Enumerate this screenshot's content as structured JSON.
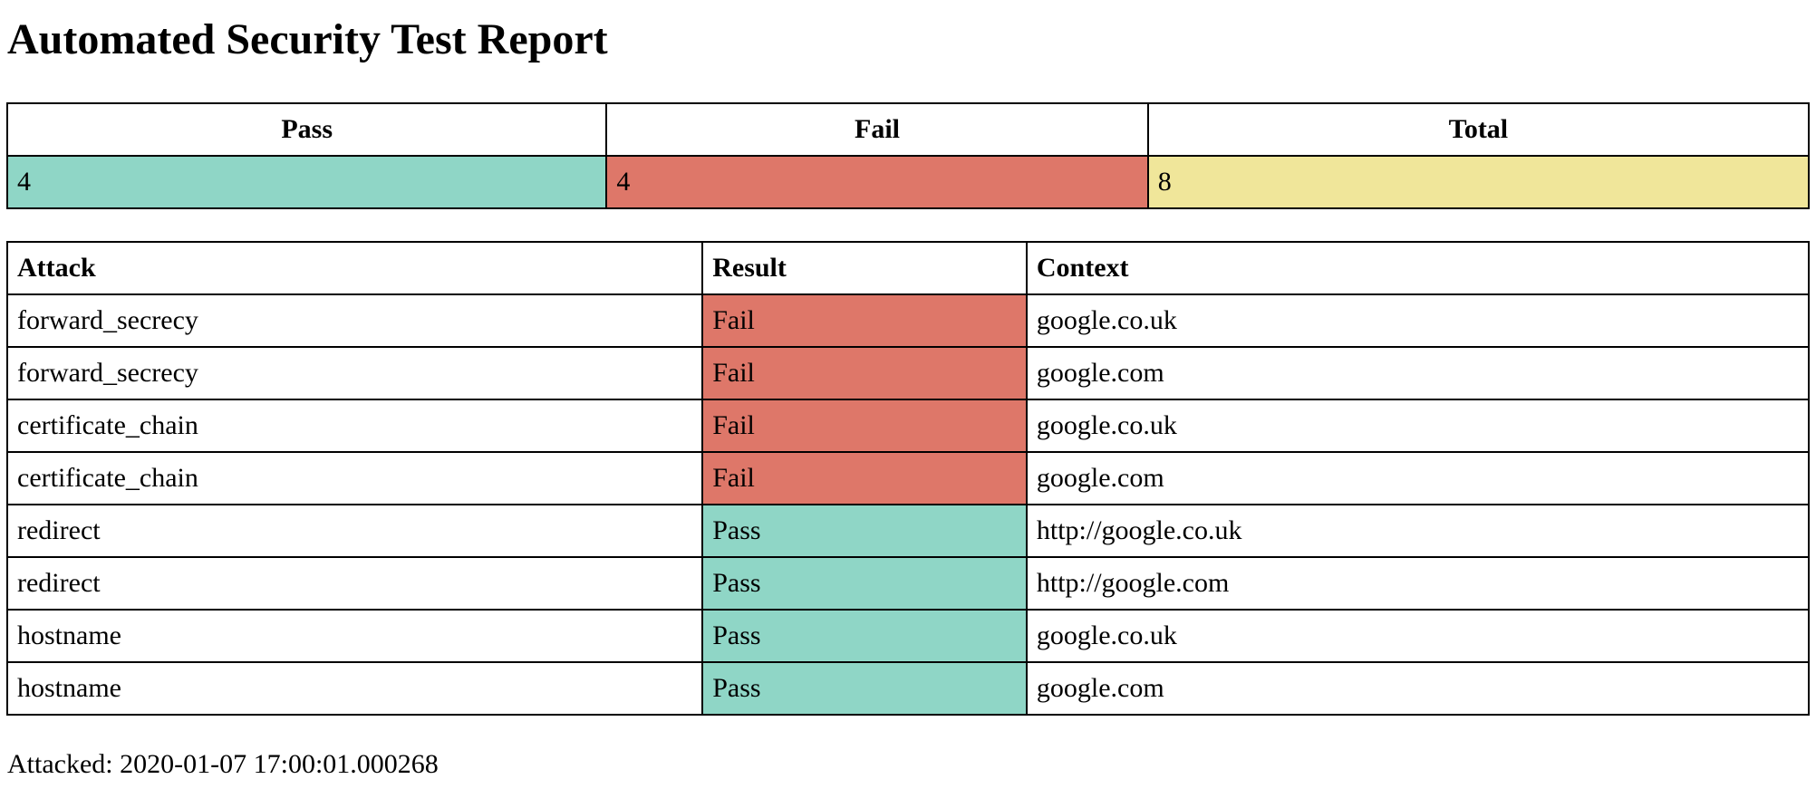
{
  "title": "Automated Security Test Report",
  "summary": {
    "headers": [
      "Pass",
      "Fail",
      "Total"
    ],
    "values": [
      "4",
      "4",
      "8"
    ],
    "colors": {
      "pass": "#8fd6c6",
      "fail": "#de7769",
      "total": "#f0e69a"
    }
  },
  "results": {
    "headers": [
      "Attack",
      "Result",
      "Context"
    ],
    "rows": [
      {
        "attack": "forward_secrecy",
        "result": "Fail",
        "context": "google.co.uk"
      },
      {
        "attack": "forward_secrecy",
        "result": "Fail",
        "context": "google.com"
      },
      {
        "attack": "certificate_chain",
        "result": "Fail",
        "context": "google.co.uk"
      },
      {
        "attack": "certificate_chain",
        "result": "Fail",
        "context": "google.com"
      },
      {
        "attack": "redirect",
        "result": "Pass",
        "context": "http://google.co.uk"
      },
      {
        "attack": "redirect",
        "result": "Pass",
        "context": "http://google.com"
      },
      {
        "attack": "hostname",
        "result": "Pass",
        "context": "google.co.uk"
      },
      {
        "attack": "hostname",
        "result": "Pass",
        "context": "google.com"
      }
    ]
  },
  "footer": {
    "attacked_label": "Attacked:",
    "attacked_time": "2020-01-07 17:00:01.000268"
  }
}
